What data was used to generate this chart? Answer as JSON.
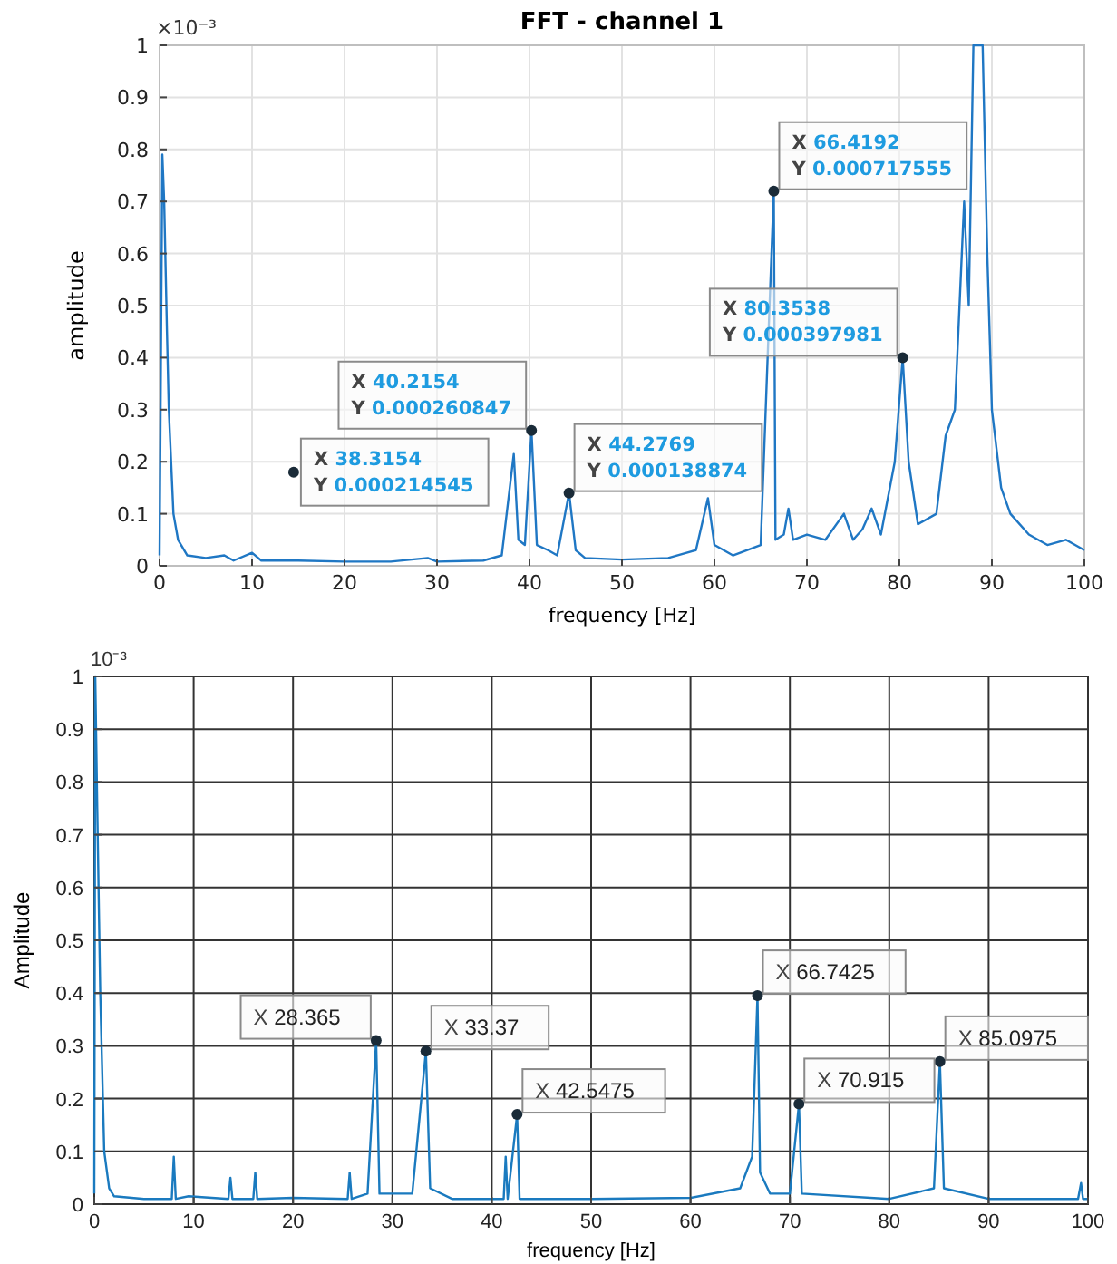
{
  "chart_data": [
    {
      "type": "line",
      "title": "FFT - channel 1",
      "xlabel": "frequency [Hz]",
      "ylabel": "amplitude",
      "xlim": [
        0,
        100
      ],
      "ylim": [
        0,
        1
      ],
      "xticks": [
        0,
        10,
        20,
        30,
        40,
        50,
        60,
        70,
        80,
        90,
        100
      ],
      "yticks": [
        0,
        0.1,
        0.2,
        0.3,
        0.4,
        0.5,
        0.6,
        0.7,
        0.8,
        0.9,
        1
      ],
      "grid": true,
      "marker": "none",
      "line_style": "solid",
      "series": [
        {
          "color": "#1f77c4",
          "x": [
            0,
            0.3,
            0.5,
            0.8,
            1,
            1.5,
            2,
            3,
            5,
            7,
            8,
            10,
            11,
            15,
            20,
            25,
            29,
            30,
            35,
            37,
            38.3,
            38.8,
            39.5,
            40.2154,
            40.8,
            42,
            43,
            44.2769,
            45,
            46,
            50,
            55,
            58,
            59.3,
            60,
            62,
            65,
            66.4192,
            66.6,
            67.5,
            68,
            68.5,
            70,
            72,
            74,
            75,
            76,
            77,
            78,
            79.5,
            80.3538,
            81,
            82,
            84,
            85,
            86,
            87,
            87.5,
            88,
            88.5,
            89,
            89.5,
            90,
            91,
            92,
            94,
            96,
            98,
            100
          ],
          "values": [
            0.02,
            0.79,
            0.7,
            0.45,
            0.3,
            0.1,
            0.05,
            0.02,
            0.015,
            0.02,
            0.01,
            0.025,
            0.01,
            0.01,
            0.008,
            0.008,
            0.015,
            0.008,
            0.01,
            0.02,
            0.215,
            0.05,
            0.04,
            0.26,
            0.04,
            0.03,
            0.02,
            0.14,
            0.03,
            0.015,
            0.012,
            0.015,
            0.03,
            0.13,
            0.04,
            0.02,
            0.04,
            0.72,
            0.05,
            0.06,
            0.11,
            0.05,
            0.06,
            0.05,
            0.1,
            0.05,
            0.07,
            0.11,
            0.06,
            0.2,
            0.4,
            0.2,
            0.08,
            0.1,
            0.25,
            0.3,
            0.7,
            0.5,
            1,
            1,
            1,
            0.6,
            0.3,
            0.15,
            0.1,
            0.06,
            0.04,
            0.05,
            0.03
          ]
        }
      ],
      "annotations": [
        "×10⁻³",
        {
          "text": "X 38.3154\nY 0.000214545",
          "x": 14.5,
          "y": 0.18
        },
        {
          "text": "X 40.2154\nY 0.000260847",
          "x": 40.2154,
          "y": 0.26
        },
        {
          "text": "X 44.2769\nY 0.000138874",
          "x": 44.2769,
          "y": 0.14
        },
        {
          "text": "X 66.4192\nY 0.000717555",
          "x": 66.4192,
          "y": 0.72
        },
        {
          "text": "X 80.3538\nY 0.000397981",
          "x": 80.3538,
          "y": 0.4
        }
      ]
    },
    {
      "type": "line",
      "xlabel": "frequency [Hz]",
      "ylabel": "Amplitude",
      "xlim": [
        0,
        100
      ],
      "ylim": [
        0,
        1
      ],
      "xticks": [
        0,
        10,
        20,
        30,
        40,
        50,
        60,
        70,
        80,
        90,
        100
      ],
      "yticks": [
        0,
        0.1,
        0.2,
        0.3,
        0.4,
        0.5,
        0.6,
        0.7,
        0.8,
        0.9,
        1
      ],
      "grid": true,
      "marker": "none",
      "line_style": "solid",
      "series": [
        {
          "color": "#1a7abf",
          "x": [
            0,
            0.1,
            0.3,
            0.6,
            1,
            1.5,
            2,
            5,
            7.8,
            8,
            8.2,
            9.5,
            13.5,
            13.7,
            13.9,
            16,
            16.2,
            16.4,
            20,
            25.5,
            25.7,
            25.9,
            27.5,
            28.365,
            28.7,
            32,
            33.37,
            33.8,
            36,
            40,
            41.2,
            41.4,
            41.6,
            42.5475,
            42.8,
            50,
            60,
            65,
            66.2,
            66.7425,
            67,
            68,
            70,
            70.915,
            71.2,
            80,
            84.5,
            85.0975,
            85.5,
            90,
            99,
            99.3,
            99.5,
            100
          ],
          "values": [
            0.02,
            1,
            0.75,
            0.4,
            0.1,
            0.03,
            0.015,
            0.01,
            0.01,
            0.09,
            0.01,
            0.015,
            0.01,
            0.05,
            0.01,
            0.01,
            0.06,
            0.01,
            0.012,
            0.01,
            0.06,
            0.01,
            0.02,
            0.31,
            0.02,
            0.02,
            0.29,
            0.03,
            0.01,
            0.01,
            0.01,
            0.09,
            0.01,
            0.17,
            0.01,
            0.01,
            0.012,
            0.03,
            0.09,
            0.395,
            0.06,
            0.02,
            0.02,
            0.19,
            0.02,
            0.01,
            0.03,
            0.27,
            0.03,
            0.01,
            0.01,
            0.04,
            0.01,
            0.01
          ]
        }
      ],
      "annotations": [
        "10⁻³",
        {
          "text": "X 28.365",
          "x": 28.365,
          "y": 0.31
        },
        {
          "text": "X 33.37",
          "x": 33.37,
          "y": 0.29
        },
        {
          "text": "X 42.5475",
          "x": 42.5475,
          "y": 0.17
        },
        {
          "text": "X 66.7425",
          "x": 66.7425,
          "y": 0.395
        },
        {
          "text": "X 70.915",
          "x": 70.915,
          "y": 0.19
        },
        {
          "text": "X 85.0975",
          "x": 85.0975,
          "y": 0.27
        }
      ]
    }
  ]
}
